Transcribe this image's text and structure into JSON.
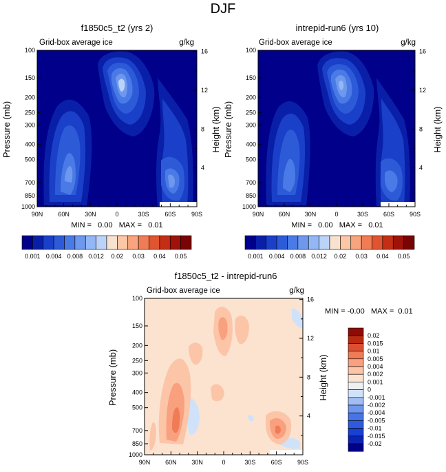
{
  "page_title": "DJF",
  "colors": {
    "abs_palette": [
      "#00008b",
      "#0a1fa8",
      "#1a3fc8",
      "#2d5bd8",
      "#4a7ae6",
      "#6d98ee",
      "#93b6f4",
      "#bcd3f8",
      "#f8e2cf",
      "#fcc7a6",
      "#f8a47f",
      "#f07c55",
      "#e0542f",
      "#c42e15",
      "#9e120a",
      "#780404"
    ],
    "diff_palette": [
      "#00008b",
      "#0b23b3",
      "#1840d4",
      "#2e5ade",
      "#4775e8",
      "#6e96ee",
      "#a1bef4",
      "#cfe2fa",
      "#f0f0f0",
      "#fbe3d0",
      "#fcc5a8",
      "#f9a07f",
      "#f07b57",
      "#dc4f30",
      "#b92a12",
      "#8e0c05"
    ]
  },
  "chart_data": [
    {
      "type": "contour",
      "title": "f1850c5_t2 (yrs 2)",
      "left_label": "Grid-box average ice",
      "units": "g/kg",
      "ylabel": "Pressure (mb)",
      "y2label": "Height (km)",
      "x_ticks": [
        "90N",
        "60N",
        "30N",
        "0",
        "30S",
        "60S",
        "90S"
      ],
      "y_ticks": [
        "100",
        "150",
        "200",
        "250",
        "300",
        "400",
        "500",
        "700",
        "850",
        "1000"
      ],
      "y2_ticks": [
        "16",
        "12",
        "8",
        "4"
      ],
      "stats": "MIN =   0.00   MAX =   0.01",
      "min": 0.0,
      "max": 0.01,
      "features": [
        {
          "lat": 65,
          "p": 800,
          "value": 0.006
        },
        {
          "lat": 0,
          "p": 250,
          "value": 0.008
        },
        {
          "lat": -68,
          "p": 830,
          "value": 0.005
        }
      ]
    },
    {
      "type": "contour",
      "title": "intrepid-run6 (yrs 10)",
      "left_label": "Grid-box average ice",
      "units": "g/kg",
      "ylabel": "Pressure (mb)",
      "y2label": "Height (km)",
      "x_ticks": [
        "90N",
        "60N",
        "30N",
        "0",
        "30S",
        "60S",
        "90S"
      ],
      "y_ticks": [
        "100",
        "150",
        "200",
        "250",
        "300",
        "400",
        "500",
        "700",
        "850",
        "1000"
      ],
      "y2_ticks": [
        "16",
        "12",
        "8",
        "4"
      ],
      "stats": "MIN =   0.00   MAX =   0.01",
      "min": 0.0,
      "max": 0.01,
      "features": [
        {
          "lat": 65,
          "p": 800,
          "value": 0.005
        },
        {
          "lat": 0,
          "p": 250,
          "value": 0.007
        },
        {
          "lat": -68,
          "p": 830,
          "value": 0.004
        }
      ]
    },
    {
      "type": "contour",
      "title": "f1850c5_t2 - intrepid-run6",
      "left_label": "Grid-box average ice",
      "units": "g/kg",
      "ylabel": "Pressure (mb)",
      "y2label": "Height (km)",
      "x_ticks": [
        "90N",
        "60N",
        "30N",
        "0",
        "30S",
        "60S",
        "90S"
      ],
      "y_ticks": [
        "100",
        "150",
        "200",
        "250",
        "300",
        "400",
        "500",
        "700",
        "850",
        "1000"
      ],
      "y2_ticks": [
        "16",
        "12",
        "8",
        "4"
      ],
      "stats": "MIN = -0.00   MAX =  0.01",
      "min": -0.0,
      "max": 0.01,
      "features": [
        {
          "lat": 60,
          "p": 750,
          "value": 0.003
        },
        {
          "lat": 10,
          "p": 250,
          "value": 0.001
        },
        {
          "lat": -60,
          "p": 830,
          "value": 0.002
        }
      ]
    }
  ],
  "colorbars": {
    "abs_labels": [
      "0.001",
      "0.004",
      "0.008",
      "0.012",
      "0.02",
      "0.03",
      "0.04",
      "0.05"
    ],
    "diff_labels": [
      "0.02",
      "0.015",
      "0.01",
      "0.005",
      "0.004",
      "0.002",
      "0.001",
      "0",
      "-0.001",
      "-0.002",
      "-0.004",
      "-0.005",
      "-0.01",
      "-0.015",
      "-0.02"
    ]
  }
}
